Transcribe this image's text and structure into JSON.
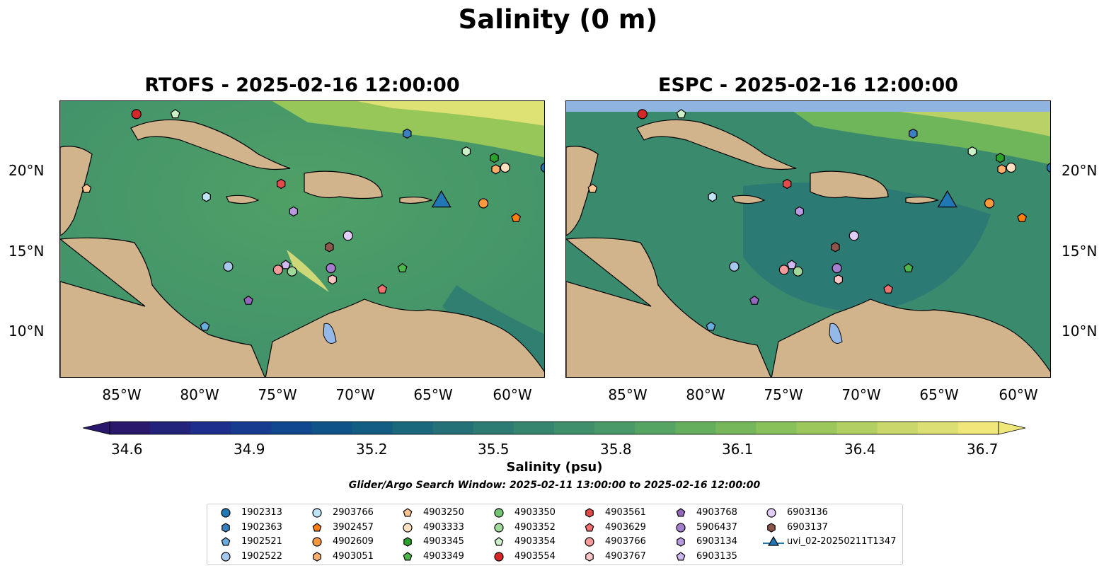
{
  "suptitle": "Salinity (0 m)",
  "panels": [
    {
      "title": "RTOFS - 2025-02-16 12:00:00",
      "model": "RTOFS"
    },
    {
      "title": "ESPC - 2025-02-16 12:00:00",
      "model": "ESPC"
    }
  ],
  "map_extent": {
    "lon_min": -89.3,
    "lon_max": -58.1,
    "lat_min": 7.2,
    "lat_max": 24.3
  },
  "lat_ticks": [
    "20°N",
    "15°N",
    "10°N"
  ],
  "lon_ticks": [
    "85°W",
    "80°W",
    "75°W",
    "70°W",
    "65°W",
    "60°W"
  ],
  "colorbar": {
    "ticks": [
      "34.6",
      "34.9",
      "35.2",
      "35.5",
      "35.8",
      "36.1",
      "36.4",
      "36.7"
    ],
    "label": "Salinity (psu)",
    "range": [
      34.6,
      36.7
    ],
    "colormap": "haline",
    "colors": [
      "#2a186c",
      "#1d2f8e",
      "#0f4a8e",
      "#126180",
      "#287675",
      "#3a8a6d",
      "#4fa066",
      "#6fb55a",
      "#97c659",
      "#c7d66a",
      "#f0e77b"
    ]
  },
  "search_window": "Glider/Argo Search Window: 2025-02-11 13:00:00 to 2025-02-16 12:00:00",
  "land_color": "#d2b48c",
  "background_colors": {
    "dark_pacific": "#2a186c",
    "espc_top_band": "#8fb4e0",
    "lake": "#94b8e8"
  },
  "legend": [
    {
      "label": "1902313",
      "marker": "circle",
      "color": "#1f77b4"
    },
    {
      "label": "1902363",
      "marker": "hexagon",
      "color": "#3a7fc0"
    },
    {
      "label": "1902521",
      "marker": "pentagon",
      "color": "#6aaee0"
    },
    {
      "label": "1902522",
      "marker": "circle",
      "color": "#a6c8ec"
    },
    {
      "label": "2903766",
      "marker": "circle",
      "color": "#bfe3f7"
    },
    {
      "label": "3902457",
      "marker": "pentagon",
      "color": "#ff7f0e"
    },
    {
      "label": "4902609",
      "marker": "circle",
      "color": "#fd9a3d"
    },
    {
      "label": "4903051",
      "marker": "hexagon",
      "color": "#fdae6b"
    },
    {
      "label": "4903250",
      "marker": "pentagon",
      "color": "#fdc591"
    },
    {
      "label": "4903333",
      "marker": "circle",
      "color": "#fde0c0"
    },
    {
      "label": "4903345",
      "marker": "hexagon",
      "color": "#2ca02c"
    },
    {
      "label": "4903349",
      "marker": "pentagon",
      "color": "#4cb84c"
    },
    {
      "label": "4903350",
      "marker": "circle",
      "color": "#74c476"
    },
    {
      "label": "4903352",
      "marker": "circle",
      "color": "#a1d99b"
    },
    {
      "label": "4903354",
      "marker": "pentagon",
      "color": "#ccf0c8"
    },
    {
      "label": "4903554",
      "marker": "circle",
      "color": "#d62728"
    },
    {
      "label": "4903561",
      "marker": "hexagon",
      "color": "#e34a4b"
    },
    {
      "label": "4903629",
      "marker": "pentagon",
      "color": "#f0716f"
    },
    {
      "label": "4903766",
      "marker": "circle",
      "color": "#f59b9b"
    },
    {
      "label": "4903767",
      "marker": "hexagon",
      "color": "#fcc5c4"
    },
    {
      "label": "4903768",
      "marker": "pentagon",
      "color": "#9467bd"
    },
    {
      "label": "5906437",
      "marker": "circle",
      "color": "#a57fcf"
    },
    {
      "label": "6903134",
      "marker": "hexagon",
      "color": "#b99ae0"
    },
    {
      "label": "6903135",
      "marker": "pentagon",
      "color": "#d0b8f0"
    },
    {
      "label": "6903136",
      "marker": "circle",
      "color": "#e2cdf8"
    },
    {
      "label": "6903137",
      "marker": "hexagon",
      "color": "#8c564b"
    },
    {
      "label": "uvi_02-20250211T1347",
      "marker": "triangle",
      "color": "#1f77b4"
    }
  ],
  "platforms": [
    {
      "id": "4903554",
      "lon": -84.4,
      "lat": 23.5,
      "marker": "circle",
      "color": "#d62728"
    },
    {
      "id": "4903354",
      "lon": -81.9,
      "lat": 23.5,
      "marker": "pentagon",
      "color": "#ccf0c8"
    },
    {
      "id": "1902363",
      "lon": -67.0,
      "lat": 22.3,
      "marker": "hexagon",
      "color": "#3a7fc0"
    },
    {
      "id": "4903354b",
      "lon": -63.2,
      "lat": 21.2,
      "marker": "hexagon",
      "color": "#ccf0c8"
    },
    {
      "id": "4903345",
      "lon": -61.4,
      "lat": 20.8,
      "marker": "hexagon",
      "color": "#2ca02c"
    },
    {
      "id": "4903051",
      "lon": -61.3,
      "lat": 20.1,
      "marker": "hexagon",
      "color": "#fdae6b"
    },
    {
      "id": "4903333",
      "lon": -60.7,
      "lat": 20.2,
      "marker": "circle",
      "color": "#fde0c0"
    },
    {
      "id": "1902313",
      "lon": -58.1,
      "lat": 20.2,
      "marker": "circle",
      "color": "#1f77b4"
    },
    {
      "id": "4903250",
      "lon": -87.6,
      "lat": 18.9,
      "marker": "pentagon",
      "color": "#fdc591"
    },
    {
      "id": "4903561",
      "lon": -75.1,
      "lat": 19.2,
      "marker": "hexagon",
      "color": "#e34a4b"
    },
    {
      "id": "2903766",
      "lon": -79.9,
      "lat": 18.4,
      "marker": "hexagon",
      "color": "#bfe3f7"
    },
    {
      "id": "6903134",
      "lon": -74.3,
      "lat": 17.5,
      "marker": "hexagon",
      "color": "#b99ae0"
    },
    {
      "id": "4902609",
      "lon": -62.1,
      "lat": 18.0,
      "marker": "circle",
      "color": "#fd9a3d"
    },
    {
      "id": "3902457",
      "lon": -60.0,
      "lat": 17.1,
      "marker": "pentagon",
      "color": "#ff7f0e"
    },
    {
      "id": "6903136",
      "lon": -70.8,
      "lat": 16.0,
      "marker": "circle",
      "color": "#e2cdf8"
    },
    {
      "id": "6903137",
      "lon": -72.0,
      "lat": 15.3,
      "marker": "hexagon",
      "color": "#8c564b"
    },
    {
      "id": "1902522",
      "lon": -78.5,
      "lat": 14.1,
      "marker": "circle",
      "color": "#a6c8ec"
    },
    {
      "id": "6903135",
      "lon": -74.8,
      "lat": 14.2,
      "marker": "pentagon",
      "color": "#d0b8f0"
    },
    {
      "id": "4903766",
      "lon": -75.3,
      "lat": 13.9,
      "marker": "circle",
      "color": "#f59b9b"
    },
    {
      "id": "4903352",
      "lon": -74.4,
      "lat": 13.8,
      "marker": "circle",
      "color": "#a1d99b"
    },
    {
      "id": "5906437",
      "lon": -71.9,
      "lat": 14.0,
      "marker": "circle",
      "color": "#a57fcf"
    },
    {
      "id": "4903349",
      "lon": -67.3,
      "lat": 14.0,
      "marker": "pentagon",
      "color": "#4cb84c"
    },
    {
      "id": "4903767",
      "lon": -71.8,
      "lat": 13.3,
      "marker": "hexagon",
      "color": "#fcc5c4"
    },
    {
      "id": "4903768",
      "lon": -77.2,
      "lat": 12.0,
      "marker": "pentagon",
      "color": "#9467bd"
    },
    {
      "id": "4903629",
      "lon": -68.6,
      "lat": 12.7,
      "marker": "pentagon",
      "color": "#f0716f"
    },
    {
      "id": "1902521",
      "lon": -80.0,
      "lat": 10.4,
      "marker": "pentagon",
      "color": "#6aaee0"
    },
    {
      "id": "uvi_02-20250211T1347",
      "lon": -64.8,
      "lat": 18.1,
      "marker": "triangle",
      "color": "#1f77b4"
    }
  ]
}
